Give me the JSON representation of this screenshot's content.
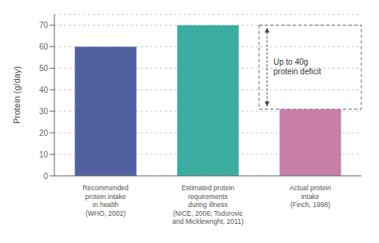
{
  "chart_data": {
    "type": "bar",
    "categories": [
      "Recommended\nprotein intake\nin health\n(WHO, 2002)",
      "Estimated protein\nrequirements\nduring illness\n(NICE, 2006; Todorovic\nand Micklewright, 2011)",
      "Actual protein\nintake\n(Finch, 1998)"
    ],
    "values": [
      60,
      70,
      31
    ],
    "colors": [
      "#5060a0",
      "#3aada0",
      "#c880a8"
    ],
    "ylabel": "Protein (g/day)",
    "ylim": [
      0,
      75
    ],
    "yticks": [
      0,
      10,
      20,
      30,
      40,
      50,
      60,
      70
    ],
    "grid": true,
    "annotation": {
      "text": "Up to 40g\nprotein deficit",
      "y_range": [
        31,
        70
      ],
      "category_index": 2
    }
  }
}
